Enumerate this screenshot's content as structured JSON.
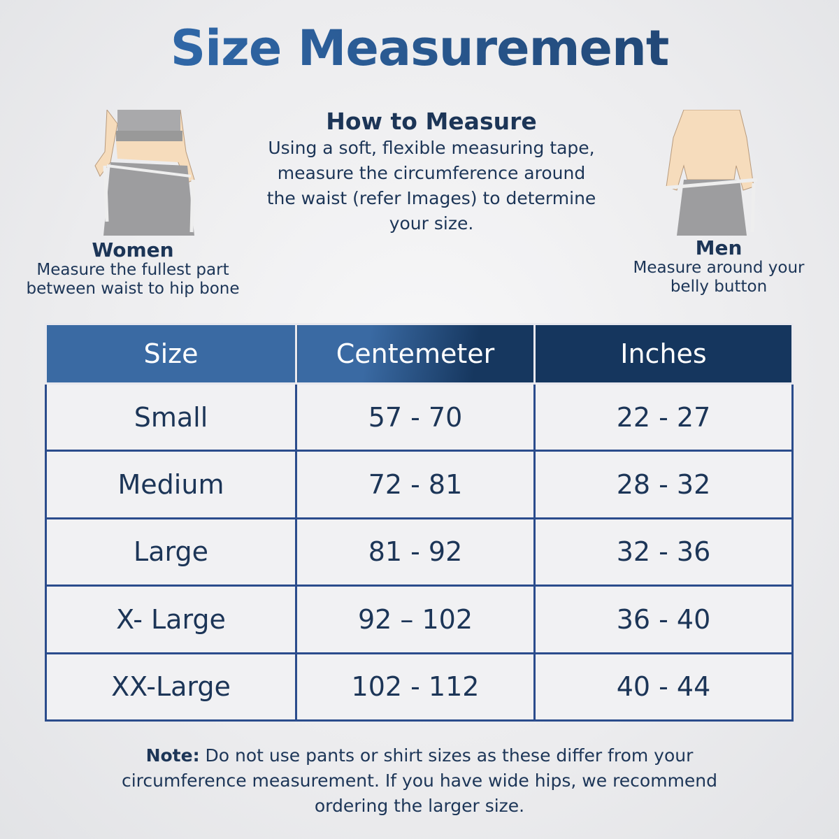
{
  "title": "Size Measurement",
  "how_to": {
    "heading": "How to Measure",
    "lines": [
      "Using a soft, flexible measuring tape,",
      "measure the circumference around",
      "the waist (refer Images) to determine",
      "your size."
    ]
  },
  "women": {
    "label": "Women",
    "lines": [
      "Measure the fullest part",
      "between waist to hip bone"
    ]
  },
  "men": {
    "label": "Men",
    "lines": [
      "Measure around your",
      "belly button"
    ]
  },
  "table": {
    "headers": [
      "Size",
      "Centemeter",
      "Inches"
    ],
    "rows": [
      [
        "Small",
        "57 - 70",
        "22 - 27"
      ],
      [
        "Medium",
        "72 - 81",
        "28 - 32"
      ],
      [
        "Large",
        "81 - 92",
        "32 - 36"
      ],
      [
        "X- Large",
        "92 – 102",
        "36 - 40"
      ],
      [
        "XX-Large",
        "102 - 112",
        "40 - 44"
      ]
    ]
  },
  "note": {
    "label": "Note:",
    "lines": [
      " Do not use pants or shirt sizes as these differ from your",
      "circumference measurement. If you have wide hips, we recommend",
      "ordering the larger size."
    ]
  },
  "colors": {
    "primary": "#1c3557",
    "header_light": "#3a6aa3",
    "header_dark": "#15365e",
    "border": "#2b4c8c"
  }
}
